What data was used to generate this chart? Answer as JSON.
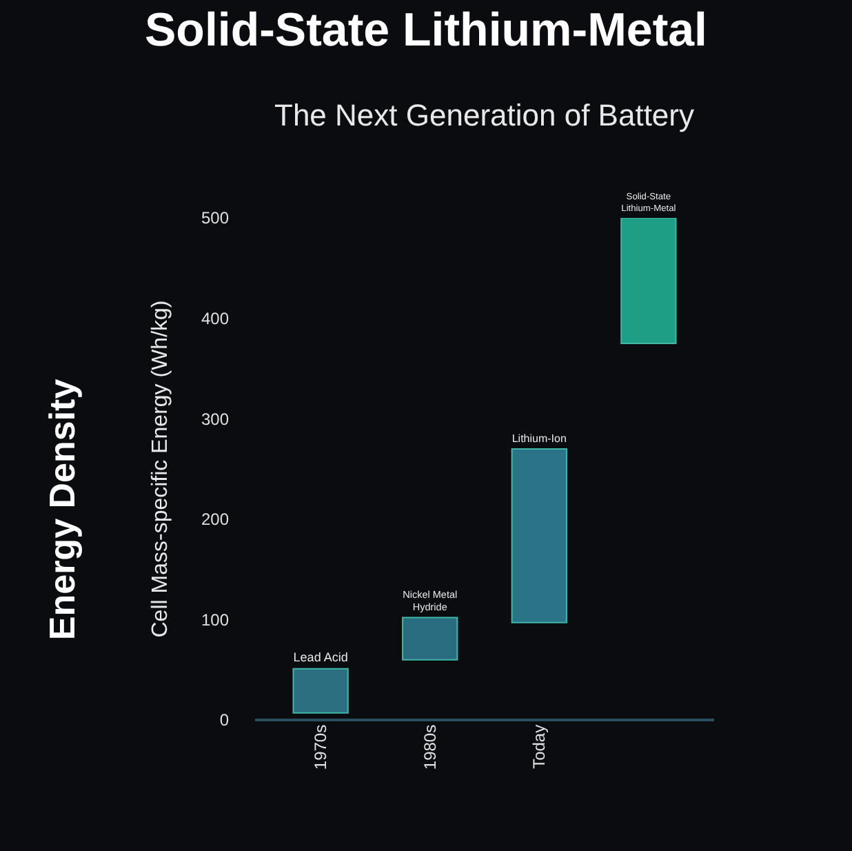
{
  "chart_data": {
    "type": "bar",
    "title": "Solid-State Lithium-Metal",
    "subtitle": "The Next Generation of Battery",
    "ylabel": "Cell Mass-specific Energy (Wh/kg)",
    "annotations": [
      "Energy Density"
    ],
    "categories": [
      "1970s",
      "1980s",
      "Today",
      null
    ],
    "base": [
      7,
      60,
      97,
      375
    ],
    "values": [
      44,
      42,
      173,
      125
    ],
    "colors": [
      "#2b6f80",
      "#2a6d80",
      "#2b7487",
      "#1f9e86"
    ],
    "value_labels": [
      "Lead Acid",
      "Nickel Metal\nHydride",
      "Lithium-Ion",
      "Solid-State\nLithium-Metal"
    ],
    "ylim": [
      0,
      500
    ],
    "yticks": [
      0,
      100,
      200,
      300,
      400,
      500
    ]
  }
}
